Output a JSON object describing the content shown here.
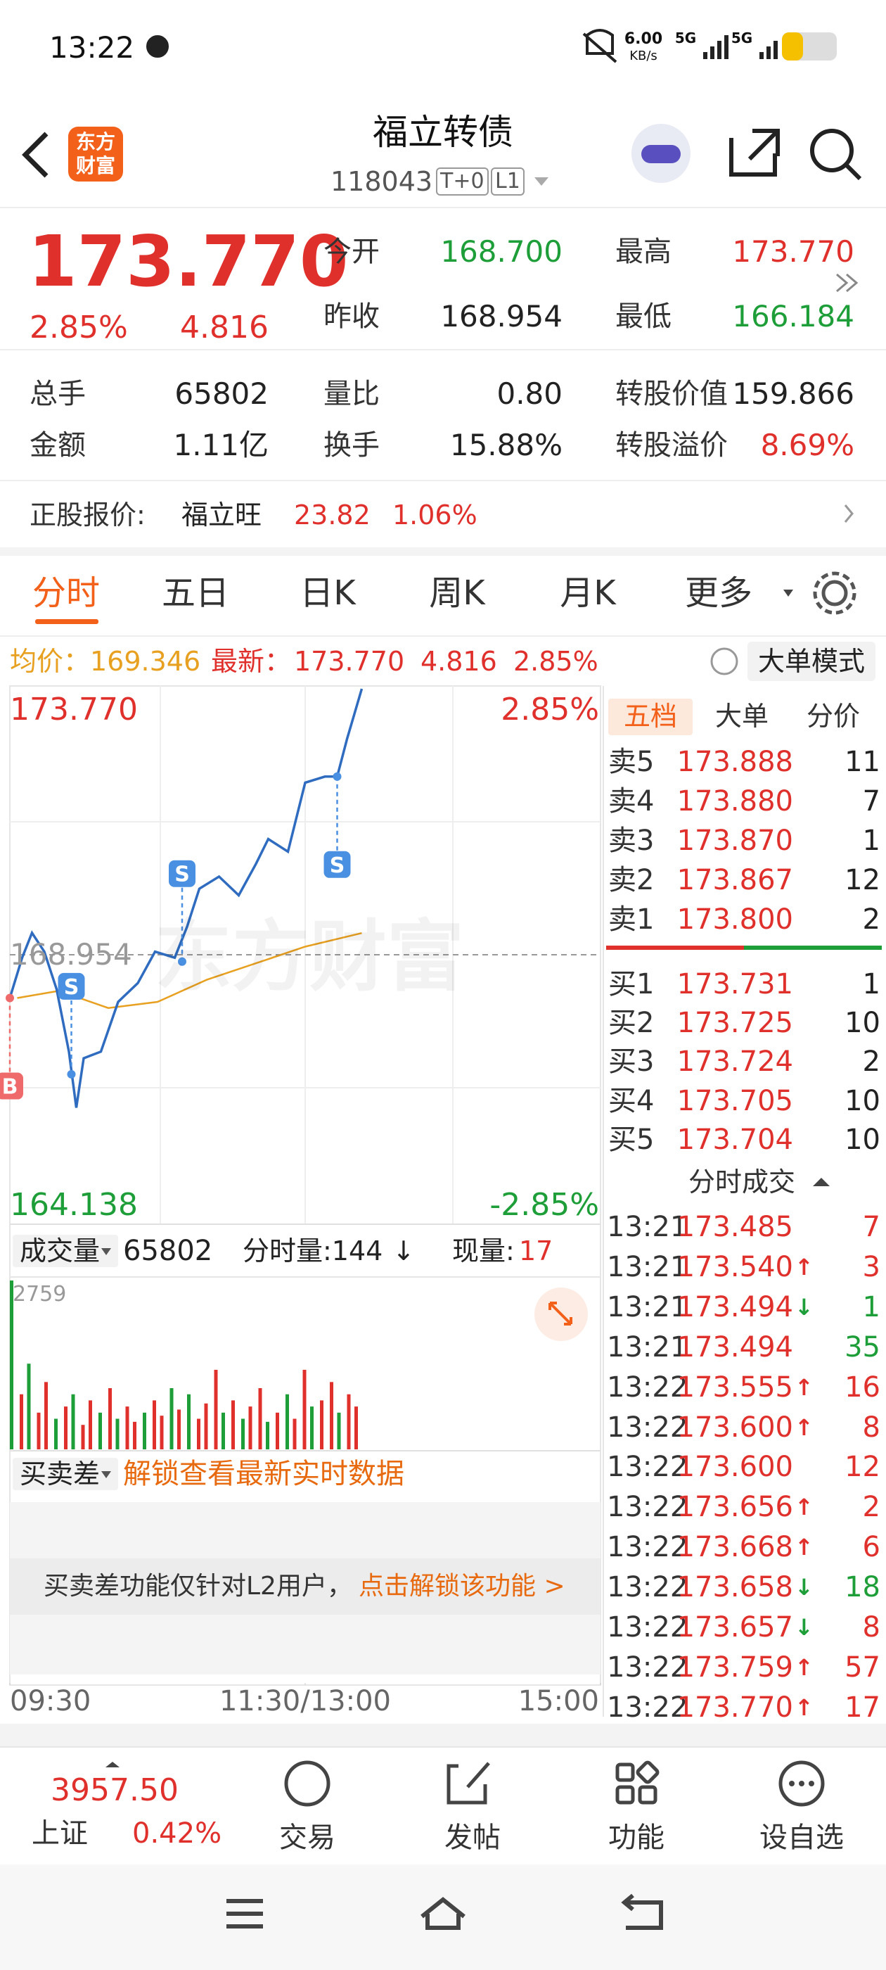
{
  "status_bar": {
    "time": "13:22",
    "speed_value": "6.00",
    "speed_unit": "KB/s",
    "network_1": "5G",
    "network_2": "5G"
  },
  "header": {
    "logo_line_1": "东方",
    "logo_line_2": "财富",
    "title": "福立转债",
    "code": "118043",
    "tags": [
      "T+0",
      "L1"
    ]
  },
  "quote": {
    "price": "173.770",
    "change_pct": "2.85%",
    "change": "4.816",
    "price_fields": [
      [
        {
          "label": "今开",
          "value": "168.700",
          "color": "#1e9e38"
        },
        {
          "label": "最高",
          "value": "173.770",
          "color": "#e0302c"
        }
      ],
      [
        {
          "label": "昨收",
          "value": "168.954",
          "color": "#222222"
        },
        {
          "label": "最低",
          "value": "166.184",
          "color": "#1e9e38"
        }
      ]
    ],
    "stats_fields": [
      [
        {
          "label": "总手",
          "value": "65802",
          "color": "#222222"
        },
        {
          "label": "量比",
          "value": "0.80",
          "color": "#222222"
        },
        {
          "label": "转股价值",
          "value": "159.866",
          "color": "#222222"
        }
      ],
      [
        {
          "label": "金额",
          "value": "1.11亿",
          "color": "#222222"
        },
        {
          "label": "换手",
          "value": "15.88%",
          "color": "#222222"
        },
        {
          "label": "转股溢价",
          "value": "8.69%",
          "color": "#e0302c"
        }
      ]
    ]
  },
  "stock_quote": {
    "label": "正股报价:",
    "name": "福立旺",
    "price": "23.82",
    "change_pct": "1.06%"
  },
  "tabs": [
    "分时",
    "五日",
    "日K",
    "周K",
    "月K",
    "更多"
  ],
  "info_bar": {
    "avg_label": "均价：",
    "avg_value": "169.346",
    "last_label": "最新：",
    "last_value": "173.770",
    "last_change": "4.816",
    "last_pct": "2.85%",
    "mode_button": "大单模式"
  },
  "chart": {
    "type": "line",
    "watermark": "东方财富",
    "ylim": [
      164.138,
      173.77
    ],
    "yticks": [
      {
        "value": 173.77,
        "label": "173.770"
      },
      {
        "value": 164.138,
        "label": "164.138"
      }
    ],
    "pct_labels": [
      "2.85%",
      "-2.85%"
    ],
    "prev_close": 168.954,
    "xlim": [
      0,
      240
    ],
    "xticks": [
      {
        "value": 0,
        "label": "09:30"
      },
      {
        "value": 120,
        "label": "11:30/13:00"
      },
      {
        "value": 240,
        "label": "15:00"
      }
    ],
    "price_color": "#2f6cc0",
    "avg_color": "#e8a020",
    "x": [
      0,
      5,
      9,
      14,
      19,
      24,
      27,
      30,
      37,
      44,
      52,
      59,
      67,
      72,
      77,
      85,
      93,
      100,
      105,
      113,
      120,
      128,
      133,
      137,
      143
    ],
    "price": [
      168.17,
      168.9,
      169.35,
      169.01,
      168.33,
      167.2,
      166.184,
      167.08,
      167.2,
      168.1,
      168.44,
      169.01,
      168.9,
      169.46,
      170.15,
      170.37,
      170.03,
      170.6,
      171.05,
      170.82,
      172.07,
      172.18,
      172.18,
      172.86,
      173.77
    ],
    "avg_x": [
      3,
      20,
      40,
      60,
      80,
      100,
      120,
      143
    ],
    "avg": [
      168.17,
      168.3,
      167.99,
      168.1,
      168.5,
      168.8,
      169.1,
      169.346
    ],
    "markers": [
      {
        "label": "B",
        "x": 0,
        "price": 168.17,
        "side": "below"
      },
      {
        "label": "S",
        "x": 25,
        "price": 166.79,
        "side": "above"
      },
      {
        "label": "S",
        "x": 70,
        "price": 168.83,
        "side": "above"
      },
      {
        "label": "S",
        "x": 133,
        "price": 172.18,
        "side": "below"
      }
    ]
  },
  "volume": {
    "label": "成交量",
    "total": "65802",
    "minute_label": "分时量:144",
    "minute_arrow": "↓",
    "current_label": "现量:",
    "current_value": "17",
    "ylim": [
      0,
      2759
    ],
    "yticks": [
      {
        "value": 2759,
        "label": "2759"
      }
    ],
    "x": [
      0,
      4,
      7,
      11,
      14,
      18,
      22,
      25,
      29,
      32,
      36,
      40,
      43,
      47,
      50,
      54,
      58,
      61,
      65,
      68,
      72,
      76,
      79,
      83,
      86,
      90,
      94,
      97,
      101,
      104,
      108,
      112,
      115,
      119,
      122,
      126,
      130,
      133,
      137,
      140
    ],
    "values": [
      2759,
      900,
      1400,
      600,
      1100,
      500,
      700,
      900,
      400,
      800,
      600,
      1000,
      500,
      700,
      450,
      600,
      800,
      550,
      1000,
      650,
      900,
      500,
      750,
      1300,
      600,
      800,
      500,
      700,
      1000,
      450,
      600,
      900,
      500,
      1300,
      700,
      800,
      1100,
      600,
      900,
      700
    ],
    "colors": [
      "#1e9e38",
      "#e0302c",
      "#1e9e38",
      "#e0302c",
      "#e0302c",
      "#1e9e38",
      "#e0302c",
      "#1e9e38",
      "#e0302c",
      "#e0302c",
      "#1e9e38",
      "#e0302c",
      "#1e9e38",
      "#e0302c",
      "#e0302c",
      "#1e9e38",
      "#e0302c",
      "#e0302c",
      "#1e9e38",
      "#e0302c",
      "#1e9e38",
      "#e0302c",
      "#e0302c",
      "#e0302c",
      "#1e9e38",
      "#e0302c",
      "#1e9e38",
      "#e0302c",
      "#e0302c",
      "#1e9e38",
      "#e0302c",
      "#1e9e38",
      "#e0302c",
      "#e0302c",
      "#1e9e38",
      "#e0302c",
      "#e0302c",
      "#1e9e38",
      "#e0302c",
      "#e0302c"
    ]
  },
  "spread": {
    "label": "买卖差",
    "unlock": "解锁查看最新实时数据",
    "notice": "买卖差功能仅针对L2用户，",
    "notice_link": "点击解锁该功能 >"
  },
  "order_book": {
    "tabs": [
      "五档",
      "大单",
      "分价"
    ],
    "asks": [
      {
        "label": "卖5",
        "price": "173.888",
        "volume": "11"
      },
      {
        "label": "卖4",
        "price": "173.880",
        "volume": "7"
      },
      {
        "label": "卖3",
        "price": "173.870",
        "volume": "1"
      },
      {
        "label": "卖2",
        "price": "173.867",
        "volume": "12"
      },
      {
        "label": "卖1",
        "price": "173.800",
        "volume": "2"
      }
    ],
    "bids": [
      {
        "label": "买1",
        "price": "173.731",
        "volume": "1"
      },
      {
        "label": "买2",
        "price": "173.725",
        "volume": "10"
      },
      {
        "label": "买3",
        "price": "173.724",
        "volume": "2"
      },
      {
        "label": "买4",
        "price": "173.705",
        "volume": "10"
      },
      {
        "label": "买5",
        "price": "173.704",
        "volume": "10"
      }
    ]
  },
  "trades": {
    "title": "分时成交",
    "rows": [
      {
        "time": "13:21",
        "price": "173.485",
        "volume": "7",
        "volume_color": "#e0302c"
      },
      {
        "time": "13:21",
        "price": "173.540",
        "arrow": "↑",
        "arrow_color": "#e0302c",
        "volume": "3",
        "volume_color": "#e0302c"
      },
      {
        "time": "13:21",
        "price": "173.494",
        "arrow": "↓",
        "arrow_color": "#1e9e38",
        "volume": "1",
        "volume_color": "#1e9e38"
      },
      {
        "time": "13:21",
        "price": "173.494",
        "volume": "35",
        "volume_color": "#1e9e38"
      },
      {
        "time": "13:22",
        "price": "173.555",
        "arrow": "↑",
        "arrow_color": "#e0302c",
        "volume": "16",
        "volume_color": "#e0302c"
      },
      {
        "time": "13:22",
        "price": "173.600",
        "arrow": "↑",
        "arrow_color": "#e0302c",
        "volume": "8",
        "volume_color": "#e0302c"
      },
      {
        "time": "13:22",
        "price": "173.600",
        "volume": "12",
        "volume_color": "#e0302c"
      },
      {
        "time": "13:22",
        "price": "173.656",
        "arrow": "↑",
        "arrow_color": "#e0302c",
        "volume": "2",
        "volume_color": "#e0302c"
      },
      {
        "time": "13:22",
        "price": "173.668",
        "arrow": "↑",
        "arrow_color": "#e0302c",
        "volume": "6",
        "volume_color": "#e0302c"
      },
      {
        "time": "13:22",
        "price": "173.658",
        "arrow": "↓",
        "arrow_color": "#1e9e38",
        "volume": "18",
        "volume_color": "#1e9e38"
      },
      {
        "time": "13:22",
        "price": "173.657",
        "arrow": "↓",
        "arrow_color": "#1e9e38",
        "volume": "8",
        "volume_color": "#e0302c"
      },
      {
        "time": "13:22",
        "price": "173.759",
        "arrow": "↑",
        "arrow_color": "#e0302c",
        "volume": "57",
        "volume_color": "#e0302c"
      },
      {
        "time": "13:22",
        "price": "173.770",
        "arrow": "↑",
        "arrow_color": "#e0302c",
        "volume": "17",
        "volume_color": "#e0302c"
      }
    ]
  },
  "footer": {
    "index_value": "3957.50",
    "index_name": "上证",
    "index_pct": "0.42%",
    "nav": [
      "交易",
      "发帖",
      "功能",
      "设自选"
    ]
  }
}
